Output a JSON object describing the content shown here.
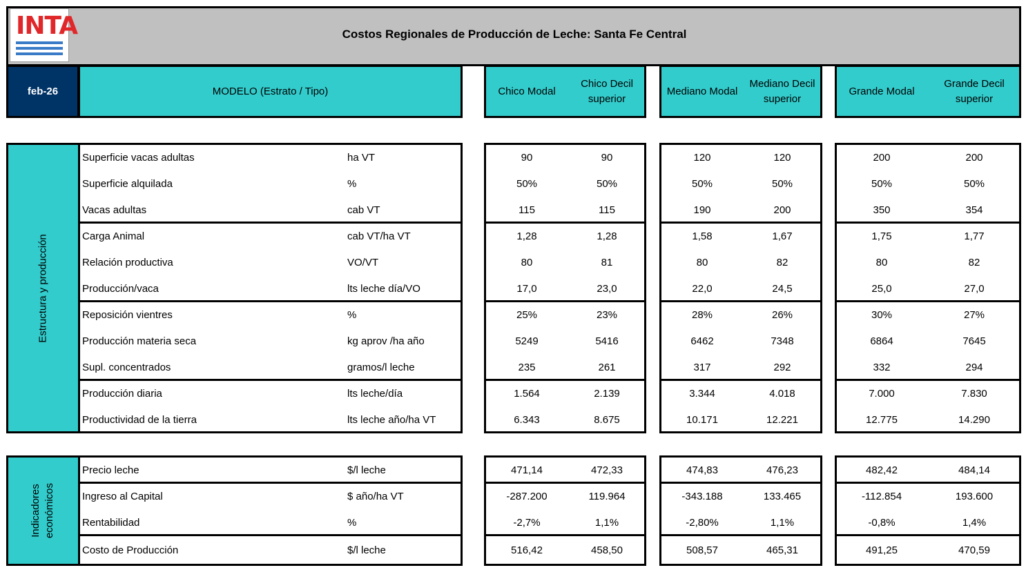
{
  "header": {
    "logo": "INTA",
    "title": "Costos Regionales de Producción de Leche: Santa Fe Central"
  },
  "table": {
    "date": "feb-26",
    "model_label": "MODELO (Estrato / Tipo)",
    "columns": [
      "Chico Modal",
      "Chico Decil superior",
      "Mediano Modal",
      "Mediano Decil superior",
      "Grande Modal",
      "Grande Decil superior"
    ],
    "sections": [
      {
        "label": "Estructura y producción",
        "groups": [
          [
            {
              "name": "Superficie vacas adultas",
              "unit": "ha VT",
              "values": [
                "90",
                "90",
                "120",
                "120",
                "200",
                "200"
              ]
            },
            {
              "name": "Superficie alquilada",
              "unit": "%",
              "values": [
                "50%",
                "50%",
                "50%",
                "50%",
                "50%",
                "50%"
              ]
            },
            {
              "name": "Vacas adultas",
              "unit": "cab VT",
              "values": [
                "115",
                "115",
                "190",
                "200",
                "350",
                "354"
              ]
            }
          ],
          [
            {
              "name": "Carga Animal",
              "unit": "cab VT/ha VT",
              "values": [
                "1,28",
                "1,28",
                "1,58",
                "1,67",
                "1,75",
                "1,77"
              ]
            },
            {
              "name": "Relación productiva",
              "unit": "VO/VT",
              "values": [
                "80",
                "81",
                "80",
                "82",
                "80",
                "82"
              ]
            },
            {
              "name": "Producción/vaca",
              "unit": "lts leche día/VO",
              "values": [
                "17,0",
                "23,0",
                "22,0",
                "24,5",
                "25,0",
                "27,0"
              ]
            }
          ],
          [
            {
              "name": "Reposición vientres",
              "unit": "%",
              "values": [
                "25%",
                "23%",
                "28%",
                "26%",
                "30%",
                "27%"
              ]
            },
            {
              "name": "Producción materia seca",
              "unit": "kg aprov /ha año",
              "values": [
                "5249",
                "5416",
                "6462",
                "7348",
                "6864",
                "7645"
              ]
            },
            {
              "name": "Supl. concentrados",
              "unit": "gramos/l leche",
              "values": [
                "235",
                "261",
                "317",
                "292",
                "332",
                "294"
              ]
            }
          ],
          [
            {
              "name": "Producción diaria",
              "unit": "lts leche/día",
              "values": [
                "1.564",
                "2.139",
                "3.344",
                "4.018",
                "7.000",
                "7.830"
              ]
            },
            {
              "name": "Productividad de la tierra",
              "unit": "lts leche año/ha VT",
              "values": [
                "6.343",
                "8.675",
                "10.171",
                "12.221",
                "12.775",
                "14.290"
              ]
            }
          ]
        ]
      },
      {
        "label": "Indicadores económicos",
        "groups": [
          [
            {
              "name": "Precio leche",
              "unit": "$/l leche",
              "values": [
                "471,14",
                "472,33",
                "474,83",
                "476,23",
                "482,42",
                "484,14"
              ]
            }
          ],
          [
            {
              "name": "Ingreso al Capital",
              "unit": "$ año/ha VT",
              "values": [
                "-287.200",
                "119.964",
                "-343.188",
                "133.465",
                "-112.854",
                "193.600"
              ]
            },
            {
              "name": "Rentabilidad",
              "unit": "%",
              "values": [
                "-2,7%",
                "1,1%",
                "-2,80%",
                "1,1%",
                "-0,8%",
                "1,4%"
              ]
            }
          ],
          [
            {
              "name": "Costo de Producción",
              "unit": "$/l leche",
              "values": [
                "516,42",
                "458,50",
                "508,57",
                "465,31",
                "491,25",
                "470,59"
              ]
            }
          ]
        ]
      }
    ]
  }
}
